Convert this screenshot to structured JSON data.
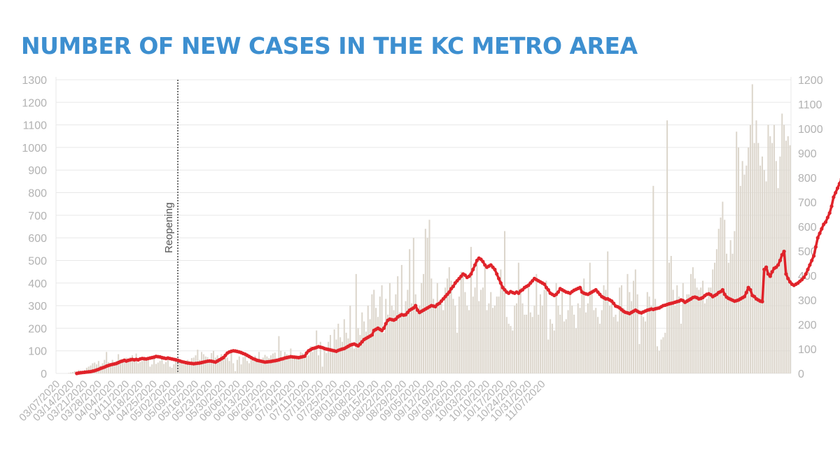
{
  "colors": {
    "title": "#3d8fd0",
    "bars": "#dcd6cc",
    "line": "#e0232a",
    "grid": "#e8e8e8",
    "axis_text": "#b2b2b2",
    "annotation": "#555555"
  },
  "chart_data": {
    "type": "bar",
    "title": "NUMBER OF NEW CASES IN THE KC METRO AREA",
    "left_axis": {
      "ylim": [
        0,
        1300
      ],
      "ticks": [
        0,
        100,
        200,
        300,
        400,
        500,
        600,
        700,
        800,
        900,
        1000,
        1100,
        1200,
        1300
      ]
    },
    "right_axis": {
      "ylim": [
        0,
        1200
      ],
      "ticks": [
        0,
        100,
        200,
        300,
        400,
        500,
        600,
        700,
        800,
        900,
        1000,
        1100,
        1200
      ]
    },
    "grid": true,
    "x_tick_labels": [
      "03/07/2020",
      "03/14/2020",
      "03/21/2020",
      "03/28/2020",
      "04/04/2020",
      "04/11/2020",
      "04/18/2020",
      "04/25/2020",
      "05/02/2020",
      "05/09/2020",
      "05/16/2020",
      "05/23/2020",
      "05/30/2020",
      "06/06/2020",
      "06/13/2020",
      "06/20/2020",
      "06/27/2020",
      "07/04/2020",
      "07/11/2020",
      "07/18/2020",
      "07/25/2020",
      "08/01/2020",
      "08/08/2020",
      "08/15/2020",
      "08/22/2020",
      "08/29/2020",
      "09/05/2020",
      "09/12/2020",
      "09/19/2020",
      "09/26/2020",
      "10/03/2020",
      "10/10/2020",
      "10/17/2020",
      "10/24/2020",
      "10/31/2020",
      "11/07/2020"
    ],
    "annotations": [
      {
        "text": "Reopening",
        "x": "05/07/2020"
      }
    ],
    "series": [
      {
        "kind": "bar",
        "axis": "left",
        "start": "03/07/2020",
        "values": [
          0,
          0,
          0,
          0,
          0,
          0,
          2,
          4,
          6,
          10,
          5,
          15,
          12,
          8,
          15,
          25,
          30,
          35,
          45,
          48,
          40,
          55,
          35,
          45,
          60,
          95,
          50,
          45,
          60,
          50,
          55,
          85,
          62,
          48,
          60,
          70,
          55,
          72,
          80,
          60,
          88,
          45,
          50,
          55,
          68,
          62,
          65,
          30,
          40,
          75,
          42,
          48,
          55,
          65,
          42,
          50,
          60,
          30,
          25,
          40,
          70,
          55,
          62,
          45,
          40,
          48,
          60,
          50,
          68,
          70,
          80,
          105,
          60,
          95,
          85,
          75,
          72,
          60,
          90,
          100,
          70,
          80,
          65,
          85,
          62,
          75,
          70,
          55,
          90,
          45,
          10,
          60,
          75,
          40,
          72,
          90,
          55,
          45,
          60,
          55,
          78,
          65,
          95,
          48,
          70,
          82,
          75,
          68,
          80,
          88,
          92,
          55,
          165,
          100,
          70,
          95,
          85,
          75,
          110,
          80,
          65,
          75,
          70,
          95,
          90,
          85,
          100,
          80,
          120,
          95,
          120,
          190,
          80,
          140,
          30,
          120,
          90,
          140,
          170,
          100,
          195,
          150,
          220,
          160,
          140,
          240,
          180,
          155,
          300,
          130,
          110,
          440,
          200,
          170,
          270,
          230,
          185,
          300,
          240,
          350,
          370,
          290,
          250,
          340,
          390,
          180,
          330,
          260,
          400,
          300,
          280,
          350,
          430,
          270,
          480,
          260,
          320,
          370,
          550,
          310,
          600,
          350,
          280,
          300,
          400,
          440,
          640,
          600,
          680,
          420,
          330,
          310,
          400,
          300,
          310,
          280,
          380,
          420,
          470,
          410,
          330,
          300,
          180,
          340,
          450,
          430,
          360,
          300,
          280,
          560,
          340,
          380,
          500,
          320,
          370,
          380,
          480,
          280,
          310,
          360,
          290,
          300,
          340,
          340,
          460,
          380,
          630,
          250,
          220,
          210,
          190,
          300,
          310,
          490,
          380,
          310,
          260,
          260,
          380,
          270,
          250,
          300,
          440,
          260,
          350,
          300,
          370,
          410,
          150,
          240,
          220,
          190,
          400,
          300,
          260,
          370,
          230,
          240,
          280,
          360,
          300,
          260,
          200,
          310,
          290,
          380,
          420,
          270,
          310,
          490,
          360,
          280,
          290,
          250,
          220,
          280,
          390,
          370,
          540,
          300,
          320,
          250,
          260,
          230,
          380,
          390,
          290,
          260,
          440,
          360,
          320,
          410,
          460,
          350,
          130,
          280,
          250,
          230,
          360,
          340,
          300,
          830,
          330,
          120,
          100,
          150,
          160,
          180,
          1120,
          490,
          520,
          370,
          300,
          390,
          340,
          220,
          400,
          320,
          350,
          350,
          440,
          470,
          420,
          380,
          370,
          380,
          410,
          310,
          330,
          380,
          380,
          460,
          490,
          550,
          640,
          690,
          760,
          680,
          530,
          490,
          590,
          530,
          630,
          1070,
          1000,
          830,
          940,
          880,
          920,
          1000,
          1100,
          1280,
          1020,
          1120,
          1020,
          920,
          960,
          900,
          850,
          1100,
          1050,
          1020,
          1100,
          940,
          820,
          960,
          1150,
          1100,
          1030,
          1050,
          1010
        ]
      },
      {
        "kind": "line",
        "axis": "left",
        "start": "03/17/2020",
        "values": [
          0,
          2,
          3,
          4,
          5,
          6,
          7,
          8,
          10,
          12,
          15,
          18,
          22,
          25,
          28,
          32,
          35,
          38,
          40,
          42,
          44,
          48,
          52,
          55,
          58,
          55,
          58,
          60,
          62,
          60,
          62,
          60,
          64,
          66,
          65,
          64,
          66,
          68,
          70,
          72,
          75,
          74,
          73,
          70,
          68,
          66,
          68,
          66,
          64,
          62,
          60,
          58,
          55,
          52,
          50,
          48,
          46,
          45,
          44,
          43,
          44,
          45,
          46,
          48,
          50,
          52,
          54,
          55,
          54,
          52,
          50,
          55,
          60,
          65,
          70,
          80,
          90,
          95,
          98,
          100,
          99,
          97,
          95,
          92,
          88,
          85,
          80,
          75,
          70,
          65,
          62,
          58,
          56,
          54,
          52,
          50,
          51,
          52,
          53,
          55,
          56,
          58,
          60,
          63,
          65,
          68,
          70,
          72,
          74,
          73,
          72,
          71,
          70,
          72,
          74,
          76,
          90,
          100,
          105,
          110,
          112,
          115,
          118,
          116,
          114,
          110,
          108,
          106,
          104,
          102,
          100,
          98,
          102,
          105,
          108,
          110,
          115,
          120,
          125,
          128,
          130,
          126,
          122,
          130,
          140,
          150,
          155,
          160,
          165,
          170,
          190,
          195,
          200,
          195,
          190,
          200,
          220,
          235,
          240,
          238,
          236,
          240,
          250,
          255,
          260,
          258,
          260,
          270,
          280,
          285,
          290,
          300,
          280,
          270,
          275,
          280,
          285,
          290,
          295,
          300,
          298,
          296,
          305,
          310,
          320,
          330,
          340,
          350,
          360,
          375,
          385,
          400,
          410,
          420,
          430,
          440,
          435,
          425,
          430,
          440,
          460,
          480,
          500,
          510,
          505,
          495,
          480,
          470,
          475,
          480,
          470,
          460,
          440,
          420,
          400,
          380,
          370,
          360,
          355,
          362,
          358,
          355,
          360,
          355,
          365,
          370,
          380,
          385,
          390,
          400,
          410,
          420,
          415,
          410,
          405,
          400,
          395,
          380,
          370,
          355,
          350,
          345,
          350,
          360,
          375,
          370,
          365,
          360,
          358,
          355,
          362,
          368,
          372,
          376,
          380,
          360,
          355,
          352,
          350,
          355,
          360,
          365,
          370,
          360,
          350,
          340,
          335,
          330,
          330,
          325,
          320,
          310,
          298,
          295,
          290,
          282,
          275,
          270,
          268,
          265,
          270,
          275,
          280,
          275,
          270,
          268,
          272,
          276,
          280,
          282,
          285,
          283,
          286,
          288,
          290,
          295,
          300,
          302,
          305,
          308,
          310,
          312,
          315,
          318,
          320,
          325,
          322,
          315,
          320,
          325,
          330,
          336,
          338,
          335,
          330,
          332,
          336,
          344,
          350,
          352,
          348,
          340,
          345,
          350,
          358,
          362,
          370,
          350,
          338,
          332,
          328,
          324,
          320,
          322,
          325,
          330,
          335,
          340,
          358,
          380,
          370,
          345,
          340,
          330,
          325,
          320,
          318,
          460,
          470,
          440,
          430,
          450,
          465,
          470,
          480,
          500,
          525,
          540,
          440,
          420,
          405,
          395,
          390,
          395,
          400,
          408,
          415,
          425,
          440,
          460,
          480,
          500,
          520,
          560,
          600,
          620,
          640,
          660,
          670,
          690,
          710,
          740,
          780,
          800,
          820,
          840,
          860,
          880,
          900,
          930,
          950,
          990,
          1040,
          1080,
          1100,
          1105,
          1095,
          1100,
          1110,
          1115
        ]
      }
    ]
  }
}
